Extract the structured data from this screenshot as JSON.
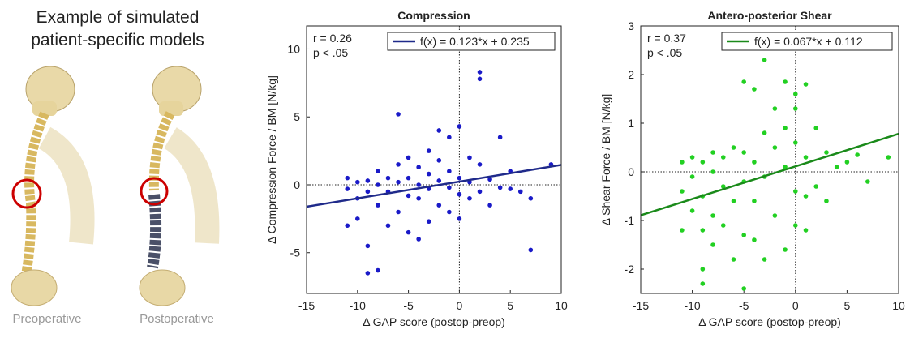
{
  "figure": {
    "title_lines": [
      "Example of simulated",
      "patient-specific models"
    ],
    "captions": [
      "Preoperative",
      "Postoperative"
    ]
  },
  "chart_data": [
    {
      "type": "scatter",
      "title": "Compression",
      "x_label": "Δ GAP score (postop-preop)",
      "y_label": "Δ Compression Force / BM [N/kg]",
      "annotations": [
        "r = 0.26",
        "p < .05"
      ],
      "fit": {
        "label": "f(x) = 0.123*x + 0.235",
        "slope": 0.123,
        "intercept": 0.235,
        "color": "#1f2a8a"
      },
      "reference_lines": {
        "x": 0,
        "y": 0
      },
      "color": "#1a1ac8",
      "x": [
        -11,
        -11,
        -11,
        -10,
        -10,
        -10,
        -9,
        -9,
        -9,
        -9,
        -8,
        -8,
        -8,
        -8,
        -7,
        -7,
        -7,
        -6,
        -6,
        -6,
        -6,
        -5,
        -5,
        -5,
        -5,
        -4,
        -4,
        -4,
        -4,
        -3,
        -3,
        -3,
        -3,
        -2,
        -2,
        -2,
        -2,
        -1,
        -1,
        -1,
        -1,
        0,
        0,
        0,
        0,
        1,
        1,
        1,
        2,
        2,
        2,
        2,
        3,
        3,
        4,
        4,
        5,
        5,
        6,
        7,
        7,
        9
      ],
      "values": [
        -3,
        0.5,
        -0.3,
        -1,
        0.2,
        -2.5,
        -6.5,
        -4.5,
        0.3,
        -0.5,
        -6.3,
        1,
        -1.5,
        0,
        -3,
        0.5,
        -0.5,
        5.2,
        -2,
        1.5,
        0.2,
        -3.5,
        2,
        -0.8,
        0.5,
        -4,
        1.3,
        -1,
        0,
        2.5,
        -2.7,
        0.8,
        -0.3,
        4,
        -1.5,
        0.3,
        1.8,
        3.5,
        -2,
        -0.2,
        1,
        4.3,
        -2.5,
        0.5,
        -0.7,
        2,
        -1,
        0.2,
        8.3,
        7.8,
        1.5,
        -0.5,
        -1.5,
        0.4,
        3.5,
        -0.2,
        1,
        -0.3,
        -0.5,
        -4.8,
        -1,
        1.5
      ],
      "xlim": [
        -15,
        10
      ],
      "xticks": [
        -15,
        -10,
        -5,
        0,
        5,
        10
      ],
      "ylim": [
        -8,
        11.7
      ],
      "yticks": [
        -5,
        0,
        5,
        10
      ]
    },
    {
      "type": "scatter",
      "title": "Antero-posterior Shear",
      "x_label": "Δ GAP score (postop-preop)",
      "y_label": "Δ Shear Force / BM [N/kg]",
      "annotations": [
        "r = 0.37",
        "p < .05"
      ],
      "fit": {
        "label": "f(x) = 0.067*x + 0.112",
        "slope": 0.067,
        "intercept": 0.112,
        "color": "#1a8a1a"
      },
      "reference_lines": {
        "x": 0,
        "y": 0
      },
      "color": "#22d022",
      "x": [
        -11,
        -11,
        -11,
        -10,
        -10,
        -10,
        -9,
        -9,
        -9,
        -9,
        -9,
        -8,
        -8,
        -8,
        -8,
        -7,
        -7,
        -7,
        -6,
        -6,
        -6,
        -5,
        -5,
        -5,
        -5,
        -5,
        -4,
        -4,
        -4,
        -4,
        -3,
        -3,
        -3,
        -3,
        -2,
        -2,
        -2,
        -1,
        -1,
        -1,
        -1,
        0,
        0,
        0,
        0,
        0,
        1,
        1,
        1,
        1,
        2,
        2,
        3,
        3,
        4,
        5,
        6,
        7,
        9
      ],
      "values": [
        -0.4,
        0.2,
        -1.2,
        -0.1,
        -0.8,
        0.3,
        -2.3,
        -2.0,
        -1.2,
        -0.5,
        0.2,
        -1.5,
        -0.9,
        0,
        0.4,
        -1.1,
        0.3,
        -0.3,
        -0.6,
        0.5,
        -1.8,
        1.85,
        -0.2,
        0.4,
        -1.3,
        -2.4,
        1.7,
        0.2,
        -0.6,
        -1.4,
        2.3,
        0.8,
        -0.1,
        -1.8,
        1.3,
        0.5,
        -0.9,
        1.85,
        0.9,
        0.1,
        -1.6,
        1.6,
        1.3,
        0.6,
        -0.4,
        -1.1,
        1.8,
        0.3,
        -0.5,
        -1.2,
        0.9,
        -0.3,
        0.4,
        -0.6,
        0.1,
        0.2,
        0.35,
        -0.2,
        0.3
      ],
      "xlim": [
        -15,
        10
      ],
      "xticks": [
        -15,
        -10,
        -5,
        0,
        5,
        10
      ],
      "ylim": [
        -2.5,
        3
      ],
      "yticks": [
        -2,
        -1,
        0,
        1,
        2,
        3
      ]
    }
  ]
}
